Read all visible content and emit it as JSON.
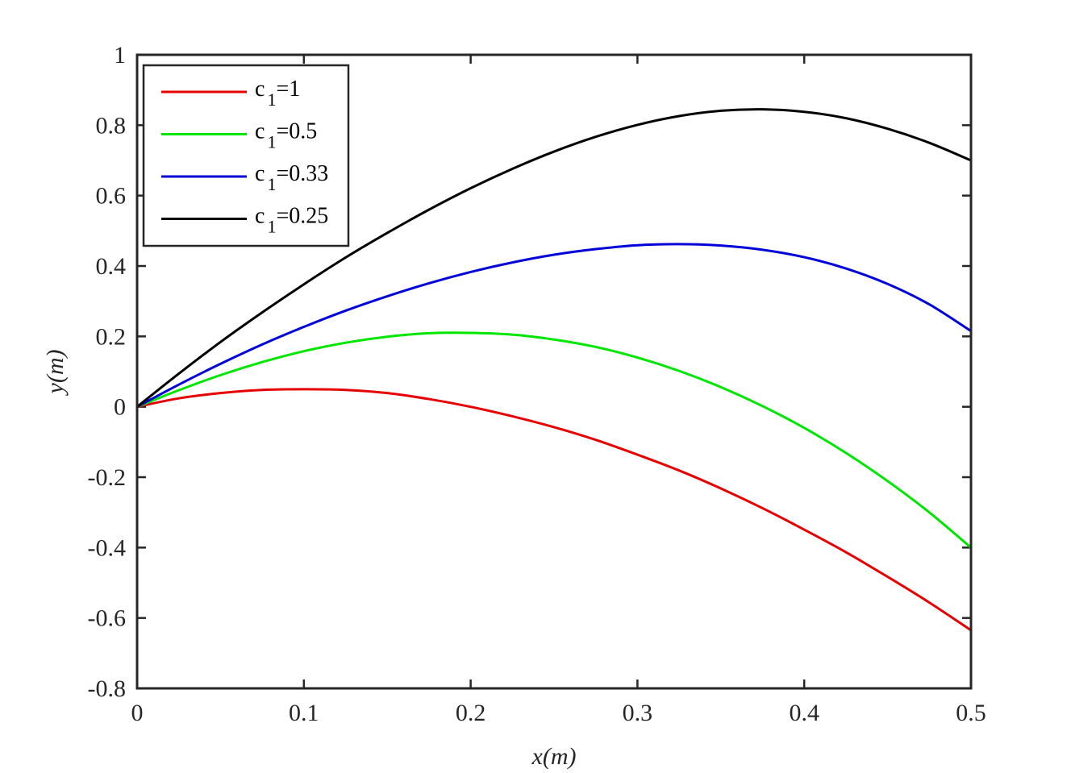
{
  "chart_data": {
    "type": "line",
    "title": "",
    "xlabel": "x(m)",
    "ylabel": "y(m)",
    "xlim": [
      0,
      0.5
    ],
    "ylim": [
      -0.8,
      1
    ],
    "xticks": [
      "0",
      "0.1",
      "0.2",
      "0.3",
      "0.4",
      "0.5"
    ],
    "yticks": [
      "1",
      "0.8",
      "0.6",
      "0.4",
      "0.2",
      "0",
      "-0.2",
      "-0.4",
      "-0.6",
      "-0.8"
    ],
    "xtick_values": [
      0,
      0.1,
      0.2,
      0.3,
      0.4,
      0.5
    ],
    "ytick_values": [
      1,
      0.8,
      0.6,
      0.4,
      0.2,
      0,
      -0.2,
      -0.4,
      -0.6,
      -0.8
    ],
    "grid": false,
    "legend_position": "top-left",
    "x": [
      0,
      0.025,
      0.05,
      0.075,
      0.1,
      0.125,
      0.15,
      0.175,
      0.2,
      0.225,
      0.25,
      0.275,
      0.3,
      0.325,
      0.35,
      0.375,
      0.4,
      0.425,
      0.45,
      0.475,
      0.5
    ],
    "series": [
      {
        "name": "c₁=1",
        "label_main": "c",
        "label_sub": "1",
        "label_value": "=1",
        "color": "#e60000",
        "values": [
          0,
          0.024,
          0.039,
          0.048,
          0.05,
          0.048,
          0.039,
          0.022,
          0,
          -0.027,
          -0.058,
          -0.094,
          -0.136,
          -0.181,
          -0.232,
          -0.288,
          -0.349,
          -0.413,
          -0.483,
          -0.556,
          -0.635
        ]
      },
      {
        "name": "c₁=0.5",
        "label_main": "c",
        "label_sub": "1",
        "label_value": "=0.5",
        "color": "#00e600",
        "values": [
          0,
          0.047,
          0.09,
          0.127,
          0.158,
          0.182,
          0.199,
          0.209,
          0.21,
          0.205,
          0.191,
          0.17,
          0.14,
          0.102,
          0.056,
          0.002,
          -0.06,
          -0.131,
          -0.211,
          -0.3,
          -0.4
        ]
      },
      {
        "name": "c₁=0.33",
        "label_main": "c",
        "label_sub": "1",
        "label_value": "=0.33",
        "color": "#0000d9",
        "values": [
          0,
          0.063,
          0.122,
          0.177,
          0.227,
          0.273,
          0.314,
          0.351,
          0.383,
          0.41,
          0.432,
          0.448,
          0.459,
          0.462,
          0.458,
          0.446,
          0.425,
          0.393,
          0.349,
          0.291,
          0.215
        ]
      },
      {
        "name": "c₁=0.25",
        "label_main": "c",
        "label_sub": "1",
        "label_value": "=0.25",
        "color": "#000000",
        "values": [
          0,
          0.094,
          0.184,
          0.268,
          0.348,
          0.424,
          0.494,
          0.56,
          0.621,
          0.676,
          0.725,
          0.767,
          0.801,
          0.826,
          0.841,
          0.845,
          0.838,
          0.82,
          0.79,
          0.75,
          0.7
        ]
      }
    ]
  }
}
